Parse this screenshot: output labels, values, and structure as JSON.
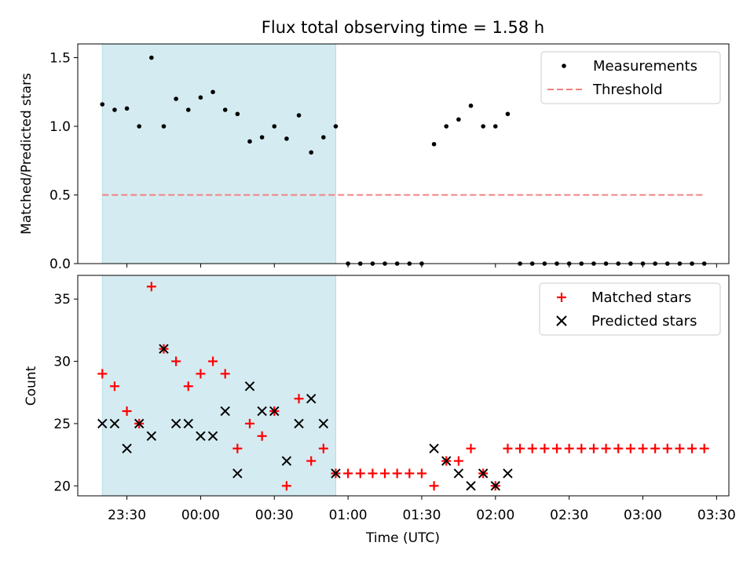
{
  "title": "Flux total observing time = 1.58 h",
  "chart_data": [
    {
      "type": "scatter",
      "ylabel": "Matched/Predicted stars",
      "xlabel": "",
      "ylim": [
        0,
        1.6
      ],
      "xlim": [
        "23:10",
        "03:35"
      ],
      "yticks": [
        "0.0",
        "0.5",
        "1.0",
        "1.5"
      ],
      "shaded_interval": {
        "start": "23:20",
        "end": "00:55",
        "color": "#d4ebf1"
      },
      "legend": {
        "position": "top-right",
        "entries": [
          "Measurements",
          "Threshold"
        ]
      },
      "series": [
        {
          "name": "Measurements",
          "color": "#000000",
          "points": [
            [
              "23:20",
              1.16
            ],
            [
              "23:25",
              1.12
            ],
            [
              "23:30",
              1.13
            ],
            [
              "23:35",
              1.0
            ],
            [
              "23:40",
              1.5
            ],
            [
              "23:45",
              1.0
            ],
            [
              "23:50",
              1.2
            ],
            [
              "23:55",
              1.12
            ],
            [
              "00:00",
              1.21
            ],
            [
              "00:05",
              1.25
            ],
            [
              "00:10",
              1.12
            ],
            [
              "00:15",
              1.09
            ],
            [
              "00:20",
              0.89
            ],
            [
              "00:25",
              0.92
            ],
            [
              "00:30",
              1.0
            ],
            [
              "00:35",
              0.91
            ],
            [
              "00:40",
              1.08
            ],
            [
              "00:45",
              0.81
            ],
            [
              "00:50",
              0.92
            ],
            [
              "00:55",
              1.0
            ],
            [
              "01:00",
              0.0
            ],
            [
              "01:05",
              0.0
            ],
            [
              "01:10",
              0.0
            ],
            [
              "01:15",
              0.0
            ],
            [
              "01:20",
              0.0
            ],
            [
              "01:25",
              0.0
            ],
            [
              "01:30",
              0.0
            ],
            [
              "01:35",
              0.87
            ],
            [
              "01:40",
              1.0
            ],
            [
              "01:45",
              1.05
            ],
            [
              "01:50",
              1.15
            ],
            [
              "01:55",
              1.0
            ],
            [
              "02:00",
              1.0
            ],
            [
              "02:05",
              1.09
            ],
            [
              "02:10",
              0.0
            ],
            [
              "02:15",
              0.0
            ],
            [
              "02:20",
              0.0
            ],
            [
              "02:25",
              0.0
            ],
            [
              "02:30",
              0.0
            ],
            [
              "02:35",
              0.0
            ],
            [
              "02:40",
              0.0
            ],
            [
              "02:45",
              0.0
            ],
            [
              "02:50",
              0.0
            ],
            [
              "02:55",
              0.0
            ],
            [
              "03:00",
              0.0
            ],
            [
              "03:05",
              0.0
            ],
            [
              "03:10",
              0.0
            ],
            [
              "03:15",
              0.0
            ],
            [
              "03:20",
              0.0
            ],
            [
              "03:25",
              0.0
            ]
          ]
        },
        {
          "name": "Threshold",
          "color": "#f08080",
          "style": "dashed",
          "points": [
            [
              "23:20",
              0.5
            ],
            [
              "03:25",
              0.5
            ]
          ]
        }
      ]
    },
    {
      "type": "scatter",
      "ylabel": "Count",
      "xlabel": "Time (UTC)",
      "ylim": [
        19.2,
        36.9
      ],
      "xlim": [
        "23:10",
        "03:35"
      ],
      "yticks": [
        "20",
        "25",
        "30",
        "35"
      ],
      "xticks": [
        "23:30",
        "00:00",
        "00:30",
        "01:00",
        "01:30",
        "02:00",
        "02:30",
        "03:00",
        "03:30"
      ],
      "shaded_interval": {
        "start": "23:20",
        "end": "00:55",
        "color": "#d4ebf1"
      },
      "legend": {
        "position": "top-right",
        "entries": [
          "Matched stars",
          "Predicted stars"
        ]
      },
      "series": [
        {
          "name": "Matched stars",
          "marker": "plus",
          "color": "#ff0000",
          "points": [
            [
              "23:20",
              29
            ],
            [
              "23:25",
              28
            ],
            [
              "23:30",
              26
            ],
            [
              "23:35",
              25
            ],
            [
              "23:40",
              36
            ],
            [
              "23:45",
              31
            ],
            [
              "23:50",
              30
            ],
            [
              "23:55",
              28
            ],
            [
              "00:00",
              29
            ],
            [
              "00:05",
              30
            ],
            [
              "00:10",
              29
            ],
            [
              "00:15",
              23
            ],
            [
              "00:20",
              25
            ],
            [
              "00:25",
              24
            ],
            [
              "00:30",
              26
            ],
            [
              "00:35",
              20
            ],
            [
              "00:40",
              27
            ],
            [
              "00:45",
              22
            ],
            [
              "00:50",
              23
            ],
            [
              "00:55",
              21
            ],
            [
              "01:00",
              21
            ],
            [
              "01:05",
              21
            ],
            [
              "01:10",
              21
            ],
            [
              "01:15",
              21
            ],
            [
              "01:20",
              21
            ],
            [
              "01:25",
              21
            ],
            [
              "01:30",
              21
            ],
            [
              "01:35",
              20
            ],
            [
              "01:40",
              22
            ],
            [
              "01:45",
              22
            ],
            [
              "01:50",
              23
            ],
            [
              "01:55",
              21
            ],
            [
              "02:00",
              20
            ],
            [
              "02:05",
              23
            ],
            [
              "02:10",
              23
            ],
            [
              "02:15",
              23
            ],
            [
              "02:20",
              23
            ],
            [
              "02:25",
              23
            ],
            [
              "02:30",
              23
            ],
            [
              "02:35",
              23
            ],
            [
              "02:40",
              23
            ],
            [
              "02:45",
              23
            ],
            [
              "02:50",
              23
            ],
            [
              "02:55",
              23
            ],
            [
              "03:00",
              23
            ],
            [
              "03:05",
              23
            ],
            [
              "03:10",
              23
            ],
            [
              "03:15",
              23
            ],
            [
              "03:20",
              23
            ],
            [
              "03:25",
              23
            ]
          ]
        },
        {
          "name": "Predicted stars",
          "marker": "x",
          "color": "#000000",
          "points": [
            [
              "23:20",
              25
            ],
            [
              "23:25",
              25
            ],
            [
              "23:30",
              23
            ],
            [
              "23:35",
              25
            ],
            [
              "23:40",
              24
            ],
            [
              "23:45",
              31
            ],
            [
              "23:50",
              25
            ],
            [
              "23:55",
              25
            ],
            [
              "00:00",
              24
            ],
            [
              "00:05",
              24
            ],
            [
              "00:10",
              26
            ],
            [
              "00:15",
              21
            ],
            [
              "00:20",
              28
            ],
            [
              "00:25",
              26
            ],
            [
              "00:30",
              26
            ],
            [
              "00:35",
              22
            ],
            [
              "00:40",
              25
            ],
            [
              "00:45",
              27
            ],
            [
              "00:50",
              25
            ],
            [
              "00:55",
              21
            ],
            [
              "01:35",
              23
            ],
            [
              "01:40",
              22
            ],
            [
              "01:45",
              21
            ],
            [
              "01:50",
              20
            ],
            [
              "01:55",
              21
            ],
            [
              "02:00",
              20
            ],
            [
              "02:05",
              21
            ]
          ]
        }
      ]
    }
  ]
}
